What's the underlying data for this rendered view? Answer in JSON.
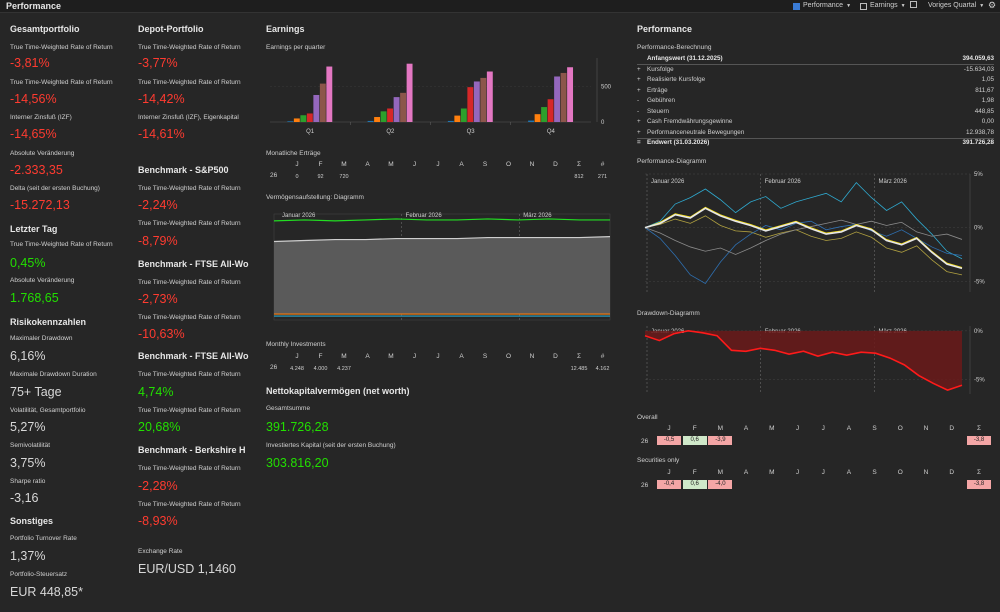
{
  "window": {
    "title": "Performance"
  },
  "toolbar": {
    "performance": "Performance",
    "earnings": "Earnings",
    "period": "Voriges Quartal"
  },
  "col1": {
    "section_total": "Gesamtportfolio",
    "twr_label_1": "True Time-Weighted Rate of Return",
    "twr_value_1": "-3,81%",
    "twr_label_2": "True Time-Weighted Rate of Return",
    "twr_value_2": "-14,56%",
    "irr_label": "Interner Zinsfuß (IZF)",
    "irr_value": "-14,65%",
    "abs_label": "Absolute Veränderung",
    "abs_value": "-2.333,35",
    "delta_label": "Delta (seit der ersten Buchung)",
    "delta_value": "-15.272,13",
    "section_lastday": "Letzter Tag",
    "ld_twr_label": "True Time-Weighted Rate of Return",
    "ld_twr_value": "0,45%",
    "ld_abs_label": "Absolute Veränderung",
    "ld_abs_value": "1.768,65",
    "section_risk": "Risikokennzahlen",
    "mdd_label": "Maximaler Drawdown",
    "mdd_value": "6,16%",
    "mddd_label": "Maximale Drawdown Duration",
    "mddd_value": "75+ Tage",
    "vol_label": "Volatilität, Gesamtportfolio",
    "vol_value": "5,27%",
    "semivol_label": "Semivolatilität",
    "semivol_value": "3,75%",
    "sharpe_label": "Sharpe ratio",
    "sharpe_value": "-3,16",
    "section_misc": "Sonstiges",
    "turnover_label": "Portfolio Turnover Rate",
    "turnover_value": "1,37%",
    "tax_label": "Portfolio-Steuersatz",
    "tax_value": "EUR 448,85*"
  },
  "col2": {
    "section_depot": "Depot-Portfolio",
    "twr_label_1": "True Time-Weighted Rate of Return",
    "twr_value_1": "-3,77%",
    "twr_label_2": "True Time-Weighted Rate of Return",
    "twr_value_2": "-14,42%",
    "irr_label": "Interner Zinsfuß (IZF), Eigenkapital",
    "irr_value": "-14,61%",
    "bm1_title": "Benchmark - S&P500",
    "bm1_label_1": "True Time-Weighted Rate of Return",
    "bm1_value_1": "-2,24%",
    "bm1_label_2": "True Time-Weighted Rate of Return",
    "bm1_value_2": "-8,79%",
    "bm2_title": "Benchmark - FTSE All-Wo",
    "bm2_label_1": "True Time-Weighted Rate of Return",
    "bm2_value_1": "-2,73%",
    "bm2_label_2": "True Time-Weighted Rate of Return",
    "bm2_value_2": "-10,63%",
    "bm3_title": "Benchmark - FTSE All-Wo",
    "bm3_label_1": "True Time-Weighted Rate of Return",
    "bm3_value_1": "4,74%",
    "bm3_label_2": "True Time-Weighted Rate of Return",
    "bm3_value_2": "20,68%",
    "bm4_title": "Benchmark - Berkshire H",
    "bm4_label_1": "True Time-Weighted Rate of Return",
    "bm4_value_1": "-2,28%",
    "bm4_label_2": "True Time-Weighted Rate of Return",
    "bm4_value_2": "-8,93%",
    "fx_label": "Exchange Rate",
    "fx_value": "EUR/USD 1,1460"
  },
  "earnings": {
    "title": "Earnings",
    "subtitle": "Earnings per quarter",
    "monthly_title": "Monatliche Erträge",
    "months": [
      "J",
      "F",
      "M",
      "A",
      "M",
      "J",
      "J",
      "A",
      "S",
      "O",
      "N",
      "D",
      "Σ",
      "#"
    ],
    "year": "26",
    "monthly_values": [
      "0",
      "92",
      "720",
      "",
      "",
      "",
      "",
      "",
      "",
      "",
      "",
      "",
      "812",
      "271"
    ],
    "asset_title": "Vermögensaufstellung: Diagramm",
    "invest_title": "Monthly Investments",
    "invest_values": [
      "4.248",
      "4.000",
      "4.237",
      "",
      "",
      "",
      "",
      "",
      "",
      "",
      "",
      "",
      "12.485",
      "4.162"
    ],
    "networth_title": "Nettokapitalvermögen (net worth)",
    "total_label": "Gesamtsumme",
    "total_value": "391.726,28",
    "invested_label": "Investiertes Kapital (seit der ersten Buchung)",
    "invested_value": "303.816,20"
  },
  "chart_data": [
    {
      "type": "bar",
      "title": "Earnings per quarter",
      "categories": [
        "Q1",
        "Q2",
        "Q3",
        "Q4"
      ],
      "ylim": [
        0,
        900
      ],
      "yticks": [
        "500",
        "0"
      ],
      "colors": [
        "#1f77b4",
        "#ff7f0e",
        "#2ca02c",
        "#d62728",
        "#9467bd",
        "#8c564b",
        "#e377c2"
      ],
      "series": [
        {
          "values": [
            10,
            15,
            15,
            20
          ]
        },
        {
          "values": [
            50,
            70,
            90,
            110
          ]
        },
        {
          "values": [
            95,
            150,
            190,
            210
          ]
        },
        {
          "values": [
            120,
            190,
            490,
            320
          ]
        },
        {
          "values": [
            380,
            350,
            570,
            640
          ]
        },
        {
          "values": [
            540,
            410,
            620,
            690
          ]
        },
        {
          "values": [
            780,
            820,
            710,
            770
          ]
        }
      ]
    },
    {
      "type": "line",
      "title": "Performance-Diagramm",
      "x_labels": [
        "Januar 2026",
        "Februar 2026",
        "März 2026"
      ],
      "yticks": [
        "5%",
        "0%",
        "-5%"
      ],
      "ylim": [
        -6,
        5
      ],
      "series": [
        {
          "color": "#e6e6e6",
          "values": [
            0,
            0.4,
            1.2,
            0.9,
            1.8,
            1.1,
            0.6,
            0.2,
            -0.3,
            0.1,
            0.5,
            -0.1,
            -0.6,
            -0.4,
            0.2,
            -0.2,
            -1.2,
            -1.6,
            -1.0,
            -2.3,
            -3.4,
            -3.8
          ]
        },
        {
          "color": "#ffe600",
          "values": [
            0,
            0.5,
            1.3,
            1.0,
            1.9,
            1.2,
            0.7,
            0.3,
            -0.2,
            0.2,
            0.6,
            0.0,
            -0.5,
            -0.3,
            0.3,
            -0.1,
            -1.1,
            -1.5,
            -0.9,
            -2.2,
            -3.3,
            -3.7
          ]
        },
        {
          "color": "#8a8a8a",
          "values": [
            0,
            -0.5,
            -1.2,
            -1.8,
            -2.2,
            -1.9,
            -2.5,
            -1.9,
            -1.2,
            -0.6,
            -0.2,
            0.1,
            0.4,
            0.7,
            0.3,
            0.6,
            0.2,
            0.5,
            -0.4,
            -0.8,
            -0.6,
            -1.1
          ]
        },
        {
          "color": "#2e6fb0",
          "values": [
            0,
            -1.0,
            -2.6,
            -4.4,
            -5.2,
            -3.2,
            -1.6,
            -0.6,
            0.2,
            -0.2,
            0.4,
            0.6,
            -0.2,
            0.1,
            0.3,
            -0.3,
            -0.8,
            -0.2,
            -1.0,
            -1.8,
            -2.4,
            -2.6
          ]
        },
        {
          "color": "#2fa9cf",
          "values": [
            0,
            0.6,
            2.2,
            2.8,
            3.6,
            2.6,
            1.4,
            2.4,
            2.9,
            1.8,
            2.4,
            2.8,
            3.2,
            2.4,
            4.2,
            2.8,
            1.6,
            2.4,
            0.8,
            -0.6,
            -2.2,
            -2.9
          ]
        },
        {
          "color": "#b0a040",
          "values": [
            0,
            0.3,
            0.8,
            0.4,
            1.1,
            0.2,
            -0.3,
            -0.4,
            -0.9,
            -0.5,
            -0.2,
            -0.8,
            -1.2,
            -1.0,
            -0.4,
            -0.9,
            -1.9,
            -2.3,
            -1.7,
            -3.0,
            -4.1,
            -4.4
          ]
        }
      ]
    },
    {
      "type": "area",
      "title": "Drawdown-Diagramm",
      "x_labels": [
        "Januar 2026",
        "Februar 2026",
        "März 2026"
      ],
      "yticks": [
        "0%",
        "-5%"
      ],
      "ylim": [
        -6.5,
        0.5
      ],
      "values": [
        -0.5,
        -1.0,
        -0.3,
        0,
        -0.2,
        -0.5,
        -2.0,
        -2.1,
        -1.8,
        -2.0,
        -2.4,
        -2.1,
        -2.6,
        -2.2,
        -2.5,
        -2.2,
        -2.3,
        -2.8,
        -3.5,
        -4.6,
        -5.4,
        -6.1,
        -5.6
      ]
    },
    {
      "type": "area",
      "title": "Vermögensaufstellung: Diagramm",
      "x_labels": [
        "Januar 2026",
        "Februar 2026",
        "März 2026"
      ],
      "series": [
        {
          "name_hidden": true,
          "color": "#22dd22",
          "values": [
            99,
            100,
            99,
            100,
            101,
            100,
            100,
            101,
            100,
            101,
            100,
            100
          ]
        },
        {
          "name_hidden": true,
          "color": "#cfcfcf",
          "values": [
            78,
            79,
            80,
            80,
            81,
            81,
            81,
            82,
            82,
            82,
            82,
            83
          ]
        },
        {
          "name_hidden": true,
          "color": "#ff7f0e",
          "values": [
            4,
            4,
            4,
            4,
            4,
            4,
            4,
            4,
            4,
            4,
            4,
            4
          ]
        },
        {
          "name_hidden": true,
          "color": "#2fa9cf",
          "values": [
            2,
            2,
            2,
            2,
            2,
            2,
            2,
            2,
            2,
            2,
            2,
            2
          ]
        }
      ]
    }
  ],
  "performance": {
    "title": "Performance",
    "calc_title": "Performance-Berechnung",
    "rows": [
      {
        "sign": "",
        "name": "Anfangswert (31.12.2025)",
        "amount": "394.059,63",
        "bold": true
      },
      {
        "sign": "+",
        "name": "Kursfolge",
        "amount": "-15.634,03"
      },
      {
        "sign": "+",
        "name": "Realisierte Kursfolge",
        "amount": "1,05"
      },
      {
        "sign": "+",
        "name": "Erträge",
        "amount": "811,67"
      },
      {
        "sign": "-",
        "name": "Gebühren",
        "amount": "1,98"
      },
      {
        "sign": "-",
        "name": "Steuern",
        "amount": "448,85"
      },
      {
        "sign": "+",
        "name": "Cash Fremdwährungsgewinne",
        "amount": "0,00"
      },
      {
        "sign": "+",
        "name": "Performanceneutrale Bewegungen",
        "amount": "12.938,78"
      },
      {
        "sign": "=",
        "name": "Endwert (31.03.2026)",
        "amount": "391.726,28",
        "bold": true
      }
    ],
    "diagram_title": "Performance-Diagramm",
    "drawdown_title": "Drawdown-Diagramm",
    "overall_title": "Overall",
    "securities_title": "Securities only",
    "months": [
      "J",
      "F",
      "M",
      "A",
      "M",
      "J",
      "J",
      "A",
      "S",
      "O",
      "N",
      "D",
      "Σ"
    ],
    "year": "26",
    "overall_values": [
      "-0,5",
      "0,6",
      "-3,9",
      "",
      "",
      "",
      "",
      "",
      "",
      "",
      "",
      "",
      "-3,8"
    ],
    "securities_values": [
      "-0,4",
      "0,6",
      "-4,0",
      "",
      "",
      "",
      "",
      "",
      "",
      "",
      "",
      "",
      "-3,8"
    ]
  }
}
